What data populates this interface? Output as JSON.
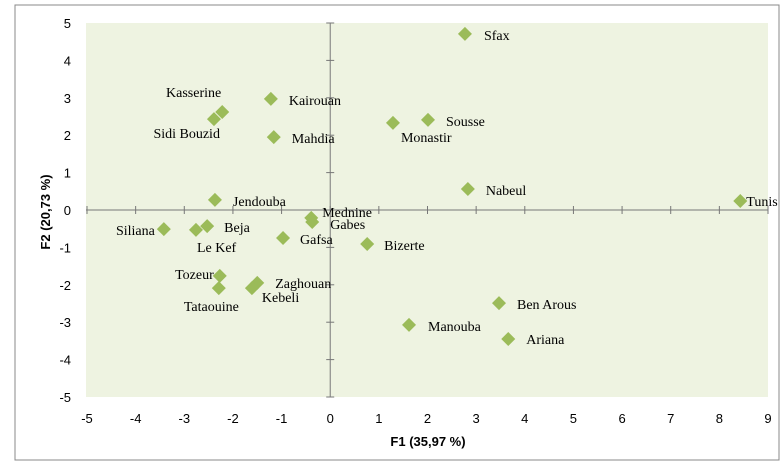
{
  "chart_data": {
    "type": "scatter",
    "xlabel": "F1 (35,97 %)",
    "ylabel": "F2 (20,73 %)",
    "color": "#9bbb59",
    "xlim": [
      -5,
      9
    ],
    "xticks": [
      -5,
      -4,
      -3,
      -2,
      -1,
      0,
      1,
      2,
      3,
      4,
      5,
      6,
      7,
      8,
      9
    ],
    "ylim": [
      -5,
      5
    ],
    "yticks": [
      -5,
      -4,
      -3,
      -2,
      -1,
      0,
      1,
      2,
      3,
      4,
      5
    ],
    "labels": [
      "Sfax",
      "Kasserine",
      "Sidi Bouzid",
      "Kairouan",
      "Mahdia",
      "Monastir",
      "Sousse",
      "Jendouba",
      "Nabeul",
      "Tunis",
      "Mednine",
      "Gabes",
      "Siliana",
      "Beja",
      "Le Kef",
      "Gafsa",
      "Bizerte",
      "Tozeur",
      "Zaghouan",
      "Kebeli",
      "Tataouine",
      "Ben Arous",
      "Manouba",
      "Ariana"
    ],
    "x": [
      2.77,
      -2.22,
      -2.39,
      -1.22,
      -1.16,
      1.29,
      2.01,
      -2.37,
      2.83,
      8.43,
      -0.39,
      -0.37,
      -3.42,
      -2.53,
      -2.76,
      -0.97,
      0.76,
      -2.27,
      -1.5,
      -1.61,
      -2.29,
      3.47,
      1.62,
      3.66
    ],
    "values": [
      4.71,
      2.62,
      2.43,
      2.97,
      1.95,
      2.33,
      2.41,
      0.27,
      0.56,
      0.24,
      -0.21,
      -0.32,
      -0.51,
      -0.43,
      -0.53,
      -0.75,
      -0.91,
      -1.76,
      -1.95,
      -2.09,
      -2.09,
      -2.49,
      -3.07,
      -3.45
    ]
  }
}
